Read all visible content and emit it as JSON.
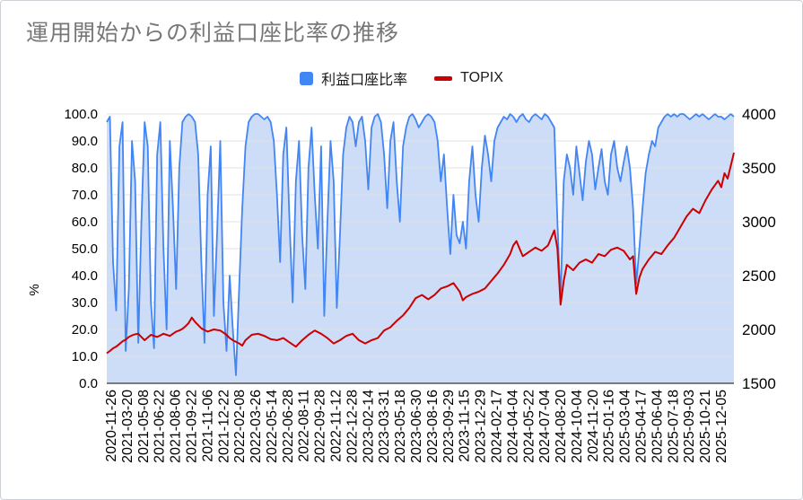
{
  "title": "運用開始からの利益口座比率の推移",
  "legend": [
    {
      "label": "利益口座比率",
      "color": "#4285f4",
      "shape": "square"
    },
    {
      "label": "TOPIX",
      "color": "#cc0000",
      "shape": "dash"
    }
  ],
  "colors": {
    "title_text": "#777777",
    "gridline": "#e2e2e2",
    "axis_text": "#000000",
    "baseline": "#555555",
    "background": "#ffffff"
  },
  "chart_data": {
    "type": "area",
    "title": "運用開始からの利益口座比率の推移",
    "ylabel_left": "%",
    "legend_position": "top",
    "grid": true,
    "axes": {
      "left": {
        "min": 0,
        "max": 100,
        "tick_labels": [
          "100.0",
          "90.0",
          "80.0",
          "70.0",
          "60.0",
          "50.0",
          "40.0",
          "30.0",
          "20.0",
          "10.0",
          "0.0"
        ],
        "label": "%"
      },
      "right": {
        "min": 1500,
        "max": 4000,
        "tick_labels": [
          "4000",
          "3500",
          "3000",
          "2500",
          "2000",
          "1500"
        ]
      }
    },
    "categories": [
      "2020-11-26",
      "2021-03-20",
      "2021-05-08",
      "2021-06-22",
      "2021-08-06",
      "2021-09-22",
      "2021-11-06",
      "2021-12-22",
      "2022-02-08",
      "2022-03-26",
      "2022-05-14",
      "2022-06-28",
      "2022-08-11",
      "2022-09-28",
      "2022-11-12",
      "2022-12-28",
      "2023-02-14",
      "2023-03-31",
      "2023-05-18",
      "2023-06-30",
      "2023-08-16",
      "2023-09-29",
      "2023-11-15",
      "2023-12-29",
      "2024-02-17",
      "2024-04-04",
      "2024-05-22",
      "2024-07-04",
      "2024-08-20",
      "2024-10-04",
      "2024-11-20",
      "2025-01-16",
      "2025-03-04",
      "2025-04-17",
      "2025-06-04",
      "2025-07-18",
      "2025-09-03",
      "2025-10-21",
      "2025-12-05"
    ],
    "series": [
      {
        "name": "利益口座比率",
        "axis": "left",
        "type": "area",
        "color": "#4285f4",
        "fill": "#cddcf7",
        "values": [
          97,
          99,
          45,
          27,
          88,
          97,
          12,
          35,
          90,
          75,
          15,
          60,
          97,
          88,
          30,
          13,
          85,
          97,
          50,
          20,
          90,
          65,
          35,
          80,
          97,
          99,
          100,
          99,
          97,
          85,
          45,
          15,
          70,
          88,
          25,
          55,
          90,
          30,
          12,
          40,
          20,
          3,
          35,
          65,
          88,
          97,
          99,
          100,
          100,
          99,
          98,
          99,
          97,
          90,
          70,
          45,
          85,
          95,
          60,
          30,
          75,
          90,
          55,
          35,
          80,
          95,
          70,
          50,
          88,
          25,
          60,
          90,
          75,
          28,
          55,
          85,
          95,
          99,
          97,
          88,
          97,
          99,
          90,
          72,
          95,
          99,
          100,
          97,
          85,
          65,
          90,
          97,
          75,
          60,
          88,
          95,
          99,
          100,
          98,
          95,
          97,
          99,
          100,
          99,
          97,
          90,
          75,
          85,
          65,
          48,
          70,
          55,
          52,
          60,
          50,
          75,
          88,
          70,
          60,
          80,
          92,
          85,
          75,
          90,
          95,
          97,
          99,
          98,
          100,
          99,
          97,
          99,
          100,
          98,
          97,
          99,
          100,
          99,
          98,
          100,
          99,
          97,
          95,
          60,
          30,
          75,
          85,
          80,
          70,
          88,
          78,
          68,
          82,
          90,
          85,
          72,
          80,
          87,
          75,
          70,
          85,
          90,
          80,
          75,
          82,
          88,
          80,
          65,
          37,
          50,
          65,
          78,
          85,
          90,
          88,
          95,
          97,
          99,
          100,
          99,
          100,
          99,
          100,
          100,
          99,
          98,
          99,
          100,
          99,
          100,
          99,
          98,
          99,
          100,
          99,
          99,
          98,
          99,
          100,
          99
        ]
      },
      {
        "name": "TOPIX",
        "axis": "right",
        "type": "line",
        "color": "#cc0000",
        "values": [
          1778,
          1800,
          1825,
          1840,
          1865,
          1890,
          1905,
          1930,
          1945,
          1955,
          1960,
          1930,
          1900,
          1925,
          1950,
          1940,
          1930,
          1945,
          1960,
          1950,
          1940,
          1960,
          1980,
          1990,
          2005,
          2030,
          2060,
          2110,
          2070,
          2040,
          2010,
          1995,
          1980,
          1990,
          2000,
          1995,
          1990,
          1970,
          1950,
          1920,
          1900,
          1885,
          1870,
          1850,
          1900,
          1925,
          1950,
          1955,
          1960,
          1950,
          1940,
          1925,
          1910,
          1905,
          1900,
          1910,
          1920,
          1900,
          1880,
          1860,
          1840,
          1870,
          1900,
          1925,
          1950,
          1970,
          1990,
          1975,
          1960,
          1940,
          1920,
          1895,
          1870,
          1885,
          1900,
          1920,
          1940,
          1950,
          1960,
          1930,
          1900,
          1885,
          1870,
          1885,
          1900,
          1910,
          1920,
          1955,
          1990,
          2005,
          2020,
          2050,
          2080,
          2105,
          2130,
          2165,
          2200,
          2245,
          2290,
          2305,
          2320,
          2300,
          2280,
          2300,
          2320,
          2350,
          2380,
          2390,
          2400,
          2415,
          2430,
          2390,
          2350,
          2270,
          2300,
          2315,
          2330,
          2340,
          2350,
          2365,
          2380,
          2415,
          2450,
          2485,
          2520,
          2560,
          2600,
          2650,
          2700,
          2780,
          2820,
          2750,
          2680,
          2700,
          2720,
          2740,
          2760,
          2745,
          2730,
          2755,
          2780,
          2850,
          2920,
          2750,
          2230,
          2450,
          2600,
          2575,
          2550,
          2585,
          2620,
          2635,
          2650,
          2635,
          2620,
          2660,
          2700,
          2690,
          2680,
          2710,
          2740,
          2750,
          2760,
          2745,
          2730,
          2690,
          2650,
          2680,
          2330,
          2480,
          2560,
          2605,
          2650,
          2685,
          2720,
          2710,
          2700,
          2740,
          2780,
          2815,
          2850,
          2900,
          2950,
          3000,
          3050,
          3085,
          3120,
          3100,
          3080,
          3140,
          3200,
          3250,
          3300,
          3340,
          3380,
          3320,
          3450,
          3400,
          3520,
          3640
        ]
      }
    ]
  }
}
